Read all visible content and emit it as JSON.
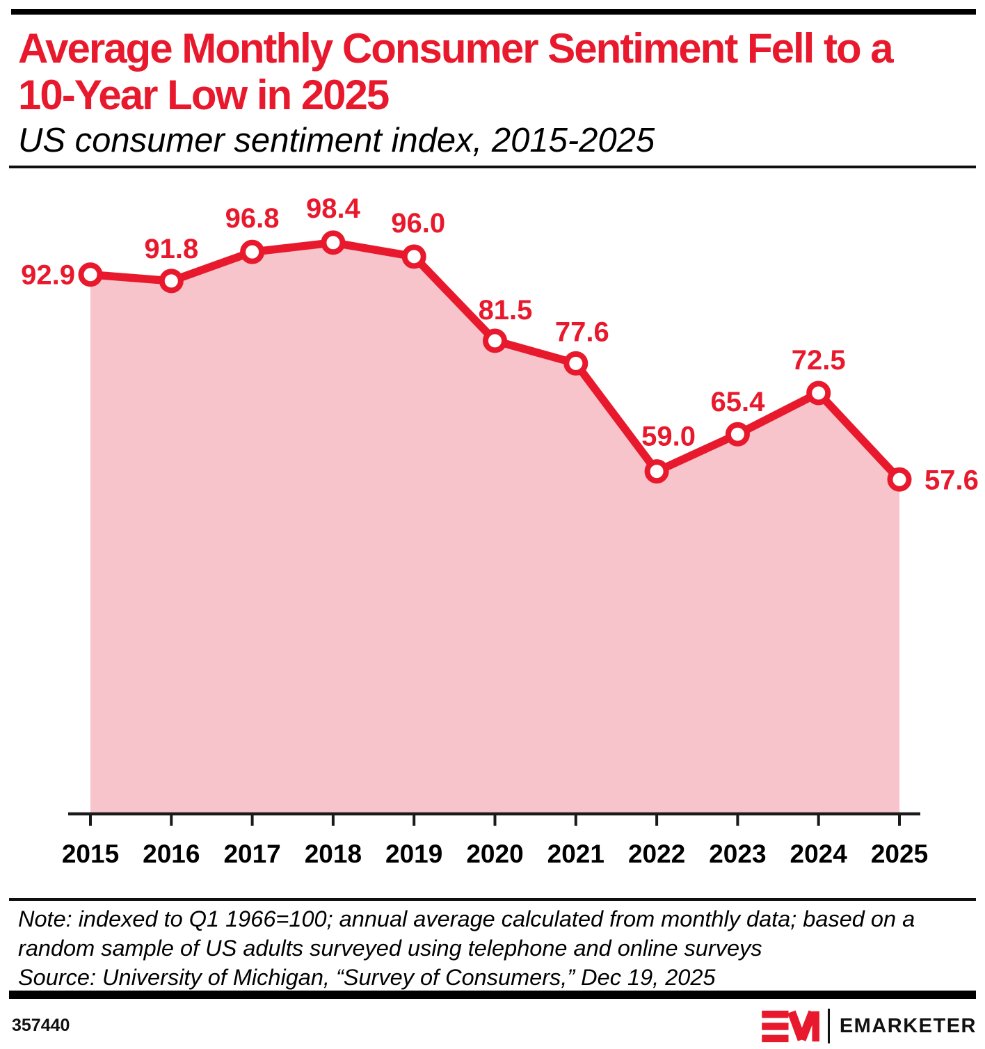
{
  "header": {
    "title_line1": "Average Monthly Consumer Sentiment Fell to a",
    "title_line2": "10-Year Low in 2025",
    "subtitle": "US consumer sentiment index, 2015-2025"
  },
  "chart_data": {
    "type": "area",
    "title": "Average Monthly Consumer Sentiment Fell to a 10-Year Low in 2025",
    "subtitle": "US consumer sentiment index, 2015-2025",
    "categories": [
      "2015",
      "2016",
      "2017",
      "2018",
      "2019",
      "2020",
      "2021",
      "2022",
      "2023",
      "2024",
      "2025"
    ],
    "series": [
      {
        "name": "US consumer sentiment index",
        "values": [
          92.9,
          91.8,
          96.8,
          98.4,
          96.0,
          81.5,
          77.6,
          59.0,
          65.4,
          72.5,
          57.6
        ]
      }
    ],
    "value_labels": [
      "92.9",
      "91.8",
      "96.8",
      "98.4",
      "96.0",
      "81.5",
      "77.6",
      "59.0",
      "65.4",
      "72.5",
      "57.6"
    ],
    "xlabel": "",
    "ylabel": "",
    "ylim": [
      0,
      110
    ],
    "grid": false,
    "legend": "none",
    "colors": {
      "line": "#e8192c",
      "area": "#f6c4ca",
      "marker_fill": "#ffffff",
      "label": "#e8192c",
      "axis": "#1a1a1a",
      "tick_label": "#000000"
    }
  },
  "footnote": {
    "note": "Note: indexed to Q1 1966=100; annual average calculated from monthly data; based on a random sample of US adults surveyed using telephone and online surveys",
    "source": "Source: University of Michigan, “Survey of Consumers,” Dec 19, 2025"
  },
  "footer": {
    "chart_id": "357440",
    "brand": "EMARKETER"
  }
}
